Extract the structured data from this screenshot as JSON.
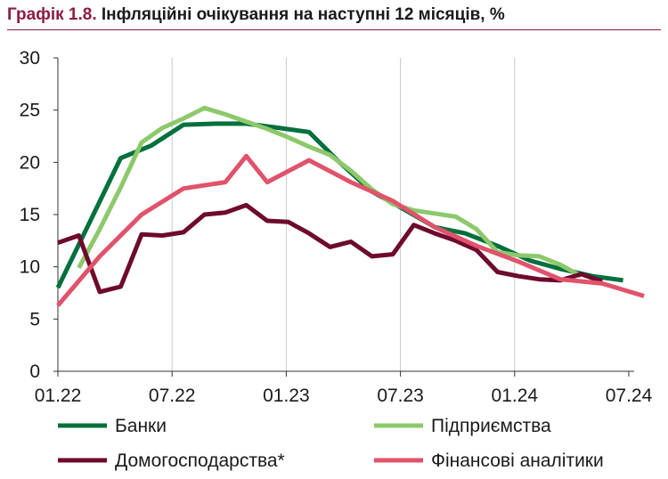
{
  "header": {
    "label": "Графік 1.8.",
    "text": "Інфляційні очікування на наступні 12 місяців, %"
  },
  "chart_data": {
    "type": "line",
    "title": "Графік 1.8. Інфляційні очікування на наступні 12 місяців, %",
    "xlabel": "",
    "ylabel": "",
    "ylim": [
      0,
      30
    ],
    "y_ticks": [
      0,
      5,
      10,
      15,
      20,
      25,
      30
    ],
    "xlim": [
      0,
      30
    ],
    "x_ticks": [
      {
        "pos": 0,
        "label": "01.22"
      },
      {
        "pos": 6,
        "label": "07.22"
      },
      {
        "pos": 12,
        "label": "01.23"
      },
      {
        "pos": 18,
        "label": "07.23"
      },
      {
        "pos": 24,
        "label": "01.24"
      },
      {
        "pos": 30,
        "label": "07.24"
      }
    ],
    "grid": "vertical",
    "legend_position": "bottom",
    "series": [
      {
        "name": "Банки",
        "color": "#00703c",
        "x": [
          0,
          1.65,
          3.3,
          4.9,
          6.6,
          8.3,
          9.9,
          11.6,
          13.2,
          14.8,
          16.5,
          18.1,
          19.8,
          21.4,
          23.1,
          24.8,
          26.4,
          28.1,
          29.7
        ],
        "values": [
          8.0,
          14.2,
          20.4,
          21.6,
          23.6,
          23.7,
          23.7,
          23.3,
          22.9,
          20.0,
          17.2,
          15.6,
          13.8,
          13.2,
          12.0,
          10.6,
          9.8,
          9.1,
          8.7
        ]
      },
      {
        "name": "Підприємства",
        "color": "#8dc86b",
        "x": [
          1.1,
          2.2,
          3.3,
          4.4,
          5.5,
          6.6,
          7.7,
          8.8,
          9.9,
          11.0,
          12.1,
          13.2,
          14.3,
          15.4,
          16.5,
          17.6,
          18.7,
          19.8,
          20.9,
          22.0,
          23.1,
          24.2,
          25.3,
          26.4,
          27.5
        ],
        "values": [
          9.9,
          13.6,
          17.6,
          21.9,
          23.3,
          24.2,
          25.2,
          24.6,
          23.9,
          23.2,
          22.4,
          21.5,
          20.7,
          19.2,
          17.4,
          16.0,
          15.4,
          15.1,
          14.8,
          13.6,
          11.4,
          11.1,
          11.0,
          10.2,
          9.1
        ]
      },
      {
        "name": "Домогосподарства*",
        "color": "#6e0a2e",
        "x": [
          0,
          1.1,
          2.2,
          3.3,
          4.4,
          5.5,
          6.6,
          7.7,
          8.8,
          9.9,
          11.0,
          12.1,
          13.2,
          14.3,
          15.4,
          16.5,
          17.6,
          18.7,
          19.8,
          20.9,
          22.0,
          23.1,
          24.2,
          25.3,
          26.4,
          27.5,
          28.6
        ],
        "values": [
          12.3,
          13.0,
          7.6,
          8.1,
          13.1,
          13.0,
          13.3,
          15.0,
          15.2,
          15.9,
          14.4,
          14.3,
          13.2,
          11.9,
          12.4,
          11.0,
          11.2,
          14.0,
          13.2,
          12.5,
          11.6,
          9.5,
          9.1,
          8.8,
          8.7,
          9.3,
          8.6
        ]
      },
      {
        "name": "Фінансові аналітики",
        "color": "#e0536b",
        "x": [
          0,
          2.2,
          4.4,
          6.6,
          8.8,
          9.9,
          11.0,
          13.2,
          15.4,
          17.6,
          19.8,
          22.0,
          24.2,
          26.4,
          28.6,
          30.8
        ],
        "values": [
          6.3,
          11.0,
          15.0,
          17.5,
          18.1,
          20.6,
          18.1,
          20.2,
          18.1,
          16.3,
          13.8,
          12.0,
          10.5,
          8.8,
          8.4,
          7.2
        ]
      }
    ]
  }
}
